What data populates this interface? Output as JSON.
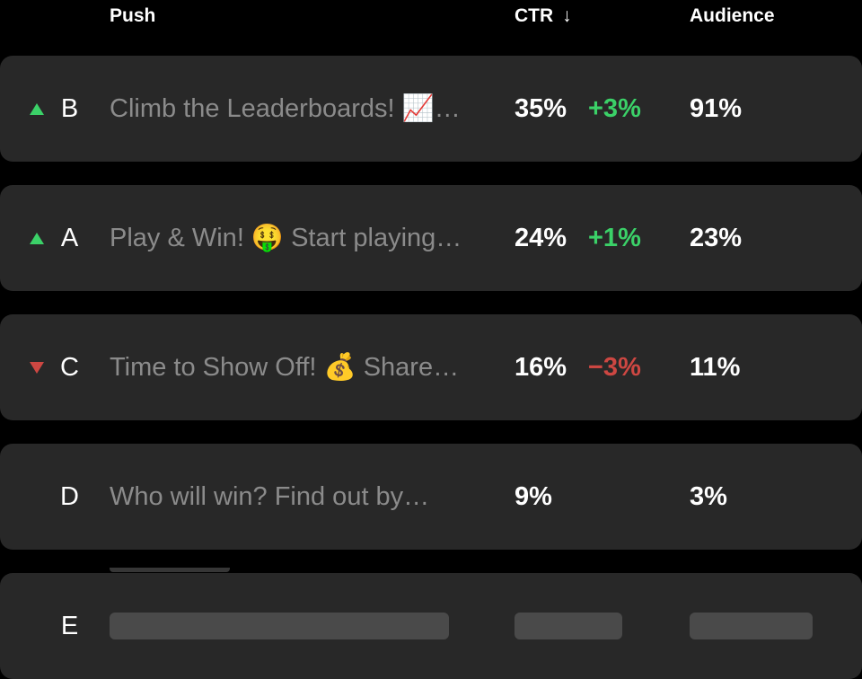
{
  "table": {
    "headers": {
      "push": "Push",
      "ctr": "CTR",
      "sort_icon": "↓",
      "audience": "Audience"
    },
    "rows": [
      {
        "variant": "B",
        "trend": "up",
        "message": "Climb the Leaderboards! 📈…",
        "ctr": "35%",
        "delta": "+3%",
        "delta_trend": "up",
        "audience": "91%",
        "skeleton": false
      },
      {
        "variant": "A",
        "trend": "up",
        "message": "Play & Win! 🤑 Start playing…",
        "ctr": "24%",
        "delta": "+1%",
        "delta_trend": "up",
        "audience": "23%",
        "skeleton": false
      },
      {
        "variant": "C",
        "trend": "down",
        "message": "Time to Show Off! 💰 Share…",
        "ctr": "16%",
        "delta": "−3%",
        "delta_trend": "down",
        "audience": "11%",
        "skeleton": false
      },
      {
        "variant": "D",
        "trend": "none",
        "message": "Who will win? Find out by…",
        "ctr": "9%",
        "delta": "",
        "delta_trend": "none",
        "audience": "3%",
        "skeleton": false
      },
      {
        "variant": "E",
        "trend": "none",
        "message": "",
        "ctr": "",
        "delta": "",
        "delta_trend": "none",
        "audience": "",
        "skeleton": true
      }
    ]
  },
  "colors": {
    "page_bg": "#000000",
    "card_bg": "#282828",
    "positive": "#3bd168",
    "negative": "#cd4742",
    "muted_text": "#8b8b8b",
    "skeleton_bar": "#4a4a4a"
  }
}
